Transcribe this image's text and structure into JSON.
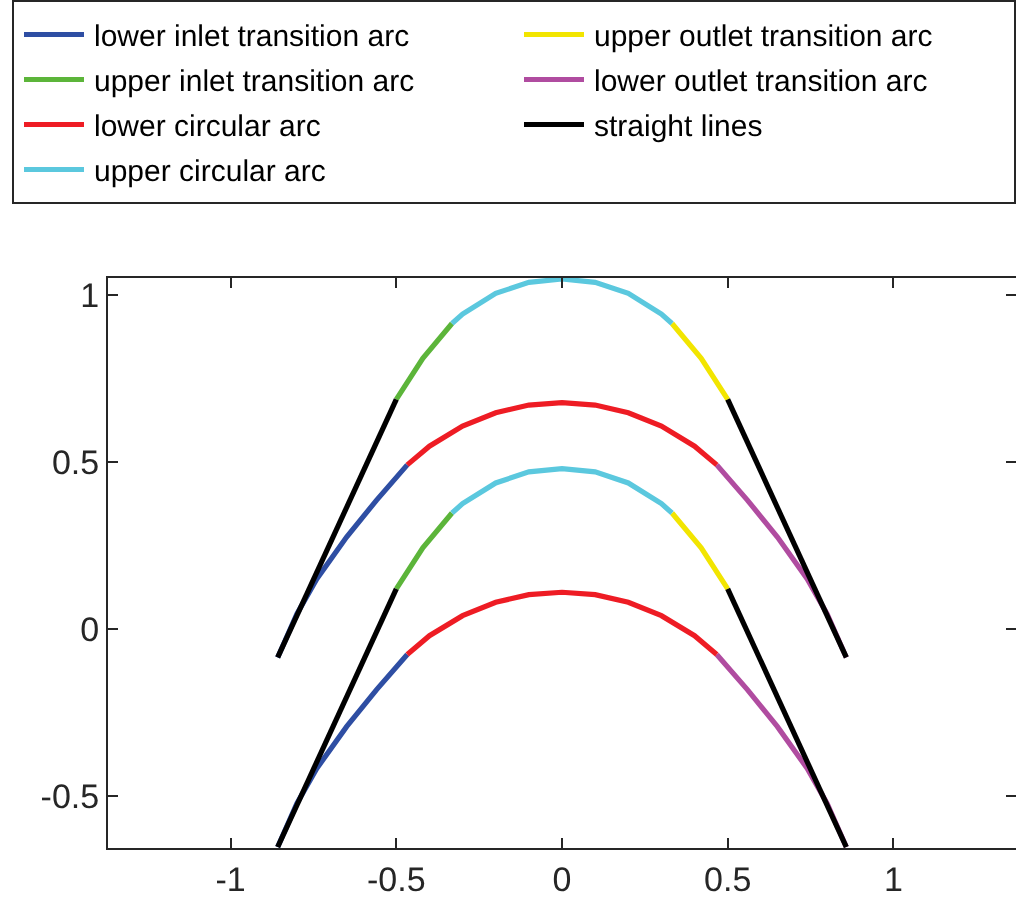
{
  "chart_data": {
    "type": "line",
    "xlim": [
      -1.37,
      1.37
    ],
    "ylim": [
      -0.655,
      1.05
    ],
    "xticks": [
      -1,
      -0.5,
      0,
      0.5,
      1
    ],
    "yticks": [
      -0.5,
      0,
      0.5,
      1
    ],
    "legend": "top",
    "marker": "none",
    "line_style": "solid",
    "series": [
      {
        "name": "lower inlet transition arc",
        "color": "#2e4ea3",
        "x": [
          -0.467,
          -0.56,
          -0.65,
          -0.74,
          -0.8,
          -0.858
        ],
        "values": [
          0.491,
          0.385,
          0.275,
          0.15,
          0.045,
          -0.085
        ]
      },
      {
        "name": "upper outlet transition arc",
        "color": "#f2e500",
        "x": [
          0.332,
          0.42,
          0.5
        ],
        "values": [
          0.914,
          0.81,
          0.687
        ]
      },
      {
        "name": "upper inlet transition arc",
        "color": "#5cb53a",
        "x": [
          -0.5,
          -0.42,
          -0.332
        ],
        "values": [
          0.687,
          0.81,
          0.914
        ]
      },
      {
        "name": "lower outlet transition arc",
        "color": "#b04ca0",
        "x": [
          0.467,
          0.56,
          0.65,
          0.74,
          0.8,
          0.858
        ],
        "values": [
          0.491,
          0.385,
          0.275,
          0.15,
          0.045,
          -0.085
        ]
      },
      {
        "name": "lower circular arc",
        "color": "#ee1c24",
        "x": [
          -0.467,
          -0.4,
          -0.3,
          -0.2,
          -0.1,
          0,
          0.1,
          0.2,
          0.3,
          0.4,
          0.467
        ],
        "values": [
          0.491,
          0.547,
          0.607,
          0.647,
          0.67,
          0.677,
          0.67,
          0.647,
          0.607,
          0.547,
          0.491
        ]
      },
      {
        "name": "straight lines",
        "color": "#000000",
        "x": [
          -0.858,
          -0.5
        ],
        "values": [
          -0.085,
          0.687
        ]
      },
      {
        "name": "upper circular arc",
        "color": "#5bc8de",
        "x": [
          -0.332,
          -0.3,
          -0.2,
          -0.1,
          0,
          0.1,
          0.2,
          0.3,
          0.332
        ],
        "values": [
          0.914,
          0.942,
          1.004,
          1.037,
          1.047,
          1.037,
          1.004,
          0.942,
          0.914
        ]
      },
      {
        "color": "#2e4ea3",
        "x": [
          -0.467,
          -0.56,
          -0.65,
          -0.74,
          -0.8,
          -0.858
        ],
        "values": [
          -0.076,
          -0.182,
          -0.292,
          -0.417,
          -0.522,
          -0.652
        ]
      },
      {
        "color": "#f2e500",
        "x": [
          0.332,
          0.42,
          0.5
        ],
        "values": [
          0.347,
          0.243,
          0.12
        ]
      },
      {
        "color": "#5cb53a",
        "x": [
          -0.5,
          -0.42,
          -0.332
        ],
        "values": [
          0.12,
          0.243,
          0.347
        ]
      },
      {
        "color": "#b04ca0",
        "x": [
          0.467,
          0.56,
          0.65,
          0.74,
          0.8,
          0.858
        ],
        "values": [
          -0.076,
          -0.182,
          -0.292,
          -0.417,
          -0.522,
          -0.652
        ]
      },
      {
        "color": "#ee1c24",
        "x": [
          -0.467,
          -0.4,
          -0.3,
          -0.2,
          -0.1,
          0,
          0.1,
          0.2,
          0.3,
          0.4,
          0.467
        ],
        "values": [
          -0.076,
          -0.02,
          0.04,
          0.08,
          0.103,
          0.11,
          0.103,
          0.08,
          0.04,
          -0.02,
          -0.076
        ]
      },
      {
        "color": "#000000",
        "x": [
          0.5,
          0.858
        ],
        "values": [
          0.687,
          -0.085
        ]
      },
      {
        "color": "#000000",
        "x": [
          -0.858,
          -0.5
        ],
        "values": [
          -0.652,
          0.12
        ]
      },
      {
        "color": "#000000",
        "x": [
          0.5,
          0.858
        ],
        "values": [
          0.12,
          -0.652
        ]
      },
      {
        "color": "#5bc8de",
        "x": [
          -0.332,
          -0.3,
          -0.2,
          -0.1,
          0,
          0.1,
          0.2,
          0.3,
          0.332
        ],
        "values": [
          0.347,
          0.375,
          0.437,
          0.47,
          0.48,
          0.47,
          0.437,
          0.375,
          0.347
        ]
      }
    ]
  }
}
